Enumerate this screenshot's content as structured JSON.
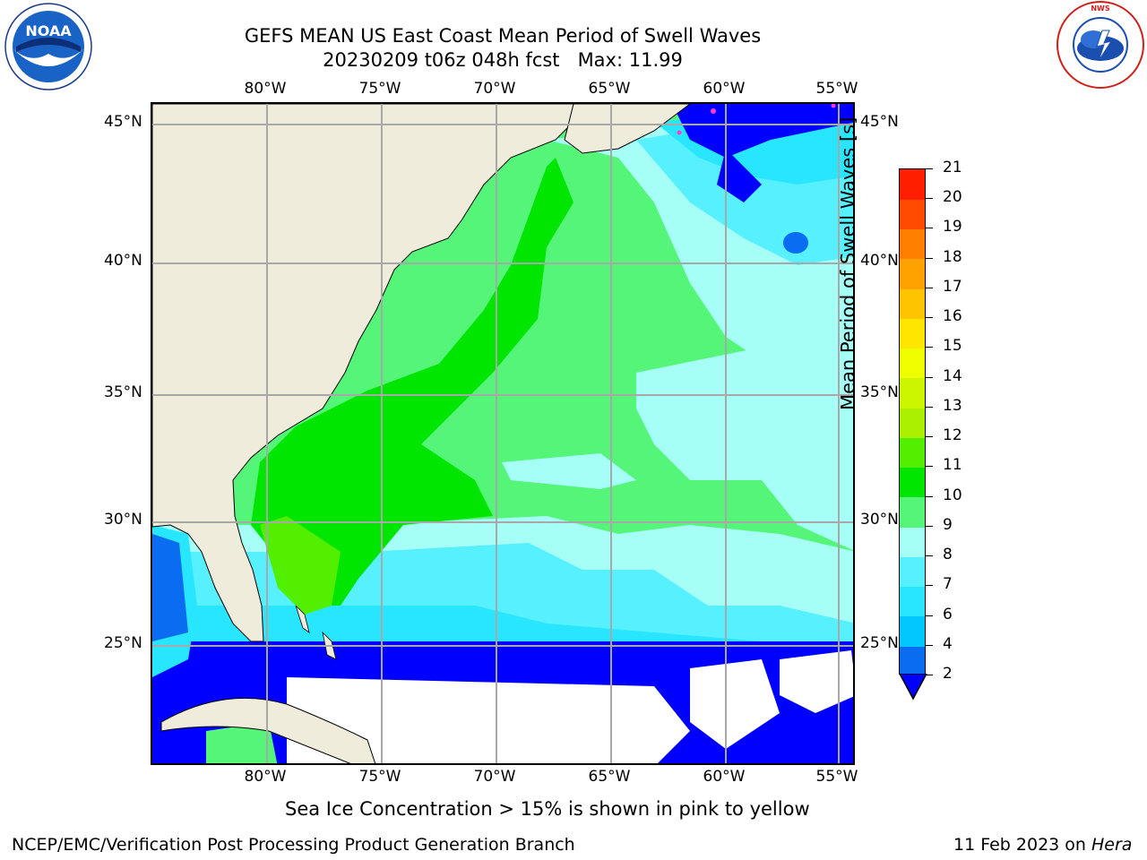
{
  "title_line1": "GEFS MEAN US East Coast Mean Period of Swell Waves",
  "title_line2": "20230209 t06z 048h fcst   Max: 11.99",
  "lon_labels": [
    "80°W",
    "75°W",
    "70°W",
    "65°W",
    "60°W",
    "55°W"
  ],
  "lat_labels": [
    "45°N",
    "40°N",
    "35°N",
    "30°N",
    "25°N"
  ],
  "colorbar": {
    "label": "Mean Period of Swell Waves [s]",
    "ticks": [
      "2",
      "4",
      "6",
      "7",
      "8",
      "9",
      "10",
      "11",
      "12",
      "13",
      "14",
      "15",
      "16",
      "17",
      "18",
      "19",
      "20",
      "21"
    ],
    "colors": [
      "#0a6cf0",
      "#00c8ff",
      "#28e6ff",
      "#56f0ff",
      "#a6fff6",
      "#55f57a",
      "#00e600",
      "#52f000",
      "#aaf000",
      "#ccf500",
      "#f0ff00",
      "#ffe600",
      "#ffc400",
      "#ffa200",
      "#ff7e00",
      "#ff4a00",
      "#ff1e00"
    ],
    "extend_color": "#0000ff"
  },
  "ice_note": "Sea Ice Concentration > 15% is shown in pink to yellow",
  "footer_left": "NCEP/EMC/Verification Post Processing Product Generation Branch",
  "footer_date": "11 Feb 2023 on ",
  "footer_machine": "Hera",
  "logo_left_text": "NOAA",
  "logo_right_text": "NATIONAL WEATHER SERVICE"
}
